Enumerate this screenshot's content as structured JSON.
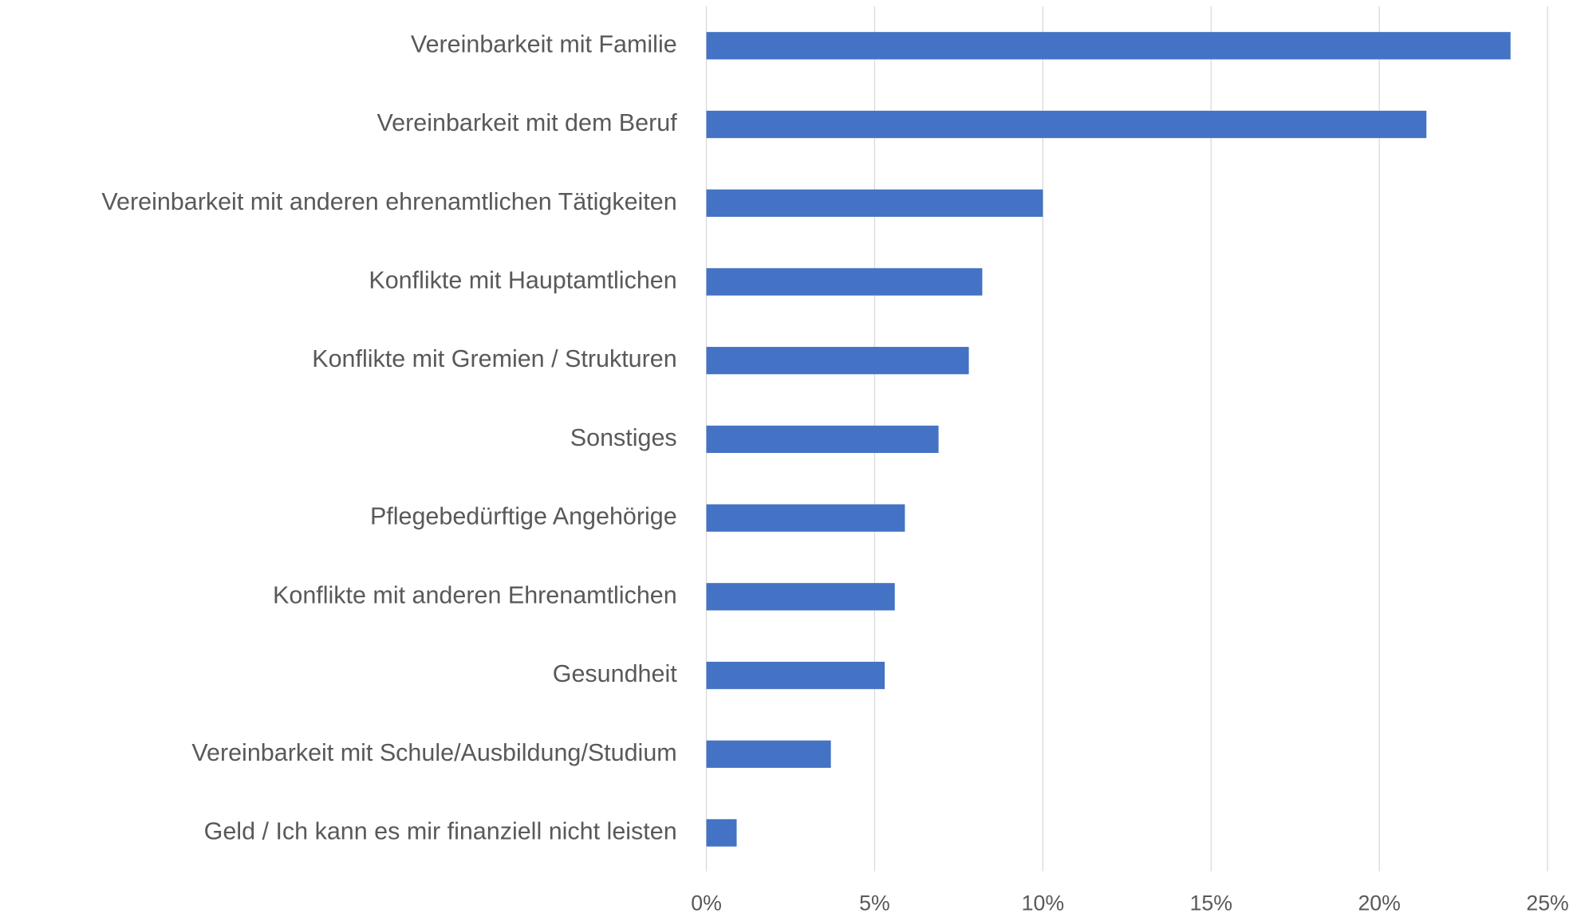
{
  "chart_data": {
    "type": "hbar",
    "categories": [
      "Vereinbarkeit mit Familie",
      "Vereinbarkeit mit dem Beruf",
      "Vereinbarkeit mit anderen ehrenamtlichen Tätigkeiten",
      "Konflikte mit Hauptamtlichen",
      "Konflikte mit Gremien / Strukturen",
      "Sonstiges",
      "Pflegebedürftige Angehörige",
      "Konflikte mit anderen Ehrenamtlichen",
      "Gesundheit",
      "Vereinbarkeit mit Schule/Ausbildung/Studium",
      "Geld / Ich kann es mir finanziell nicht leisten"
    ],
    "values": [
      23.9,
      21.4,
      10.0,
      8.2,
      7.8,
      6.9,
      5.9,
      5.6,
      5.3,
      3.7,
      0.9
    ],
    "color": "#4472c4",
    "xlim": [
      0,
      25
    ],
    "xticks": [
      {
        "value": 0,
        "label": "0%"
      },
      {
        "value": 5,
        "label": "5%"
      },
      {
        "value": 10,
        "label": "10%"
      },
      {
        "value": 15,
        "label": "15%"
      },
      {
        "value": 20,
        "label": "20%"
      },
      {
        "value": 25,
        "label": "25%"
      }
    ],
    "grid": true
  }
}
